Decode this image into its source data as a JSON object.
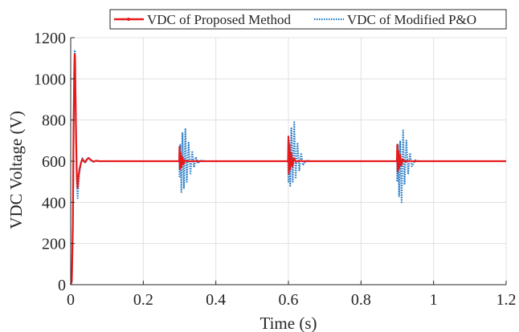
{
  "chart_data": {
    "type": "line",
    "title": "",
    "xlabel": "Time (s)",
    "ylabel": "VDC Voltage (V)",
    "xlim": [
      0,
      1.2
    ],
    "ylim": [
      0,
      1200
    ],
    "x_ticks": [
      0,
      0.2,
      0.4,
      0.6,
      0.8,
      1,
      1.2
    ],
    "x_tick_labels": [
      "0",
      "0.2",
      "0.4",
      "0.6",
      "0.8",
      "1",
      "1.2"
    ],
    "y_ticks": [
      0,
      200,
      400,
      600,
      800,
      1000,
      1200
    ],
    "y_tick_labels": [
      "0",
      "200",
      "400",
      "600",
      "800",
      "1000",
      "1200"
    ],
    "grid": true,
    "legend_position": "top-right",
    "series": [
      {
        "name": "VDC of Proposed Method",
        "color": "#e41a1c",
        "style": "solid-marker",
        "x": [
          0,
          0.003,
          0.006,
          0.008,
          0.01,
          0.011,
          0.012,
          0.013,
          0.015,
          0.017,
          0.019,
          0.021,
          0.024,
          0.028,
          0.032,
          0.036,
          0.04,
          0.045,
          0.05,
          0.056,
          0.063,
          0.07,
          0.08,
          0.1,
          0.15,
          0.2,
          0.25,
          0.299,
          0.3,
          0.301,
          0.303,
          0.305,
          0.308,
          0.311,
          0.315,
          0.32,
          0.33,
          0.34,
          0.36,
          0.4,
          0.5,
          0.599,
          0.6,
          0.601,
          0.603,
          0.605,
          0.608,
          0.611,
          0.615,
          0.62,
          0.63,
          0.64,
          0.66,
          0.7,
          0.8,
          0.899,
          0.9,
          0.901,
          0.903,
          0.905,
          0.908,
          0.911,
          0.915,
          0.92,
          0.93,
          0.94,
          0.96,
          1.0,
          1.1,
          1.2
        ],
        "y": [
          0,
          20,
          300,
          780,
          1060,
          1120,
          1100,
          950,
          700,
          520,
          470,
          520,
          560,
          590,
          610,
          600,
          595,
          610,
          615,
          605,
          598,
          602,
          600,
          600,
          600,
          600,
          600,
          600,
          670,
          560,
          640,
          570,
          620,
          585,
          605,
          600,
          600,
          600,
          600,
          600,
          600,
          600,
          720,
          540,
          680,
          560,
          640,
          575,
          615,
          598,
          602,
          600,
          600,
          600,
          600,
          600,
          680,
          550,
          650,
          565,
          630,
          580,
          610,
          598,
          601,
          600,
          600,
          600,
          600,
          600
        ]
      },
      {
        "name": "VDC of Modified P&O",
        "color": "#1f77c4",
        "style": "dotted",
        "x": [
          0,
          0.003,
          0.006,
          0.008,
          0.01,
          0.011,
          0.012,
          0.013,
          0.015,
          0.017,
          0.019,
          0.021,
          0.024,
          0.028,
          0.032,
          0.036,
          0.04,
          0.045,
          0.05,
          0.056,
          0.063,
          0.07,
          0.08,
          0.1,
          0.15,
          0.2,
          0.25,
          0.299,
          0.3,
          0.302,
          0.305,
          0.308,
          0.312,
          0.316,
          0.32,
          0.325,
          0.33,
          0.335,
          0.34,
          0.345,
          0.35,
          0.36,
          0.37,
          0.4,
          0.5,
          0.599,
          0.6,
          0.602,
          0.605,
          0.608,
          0.612,
          0.616,
          0.62,
          0.625,
          0.63,
          0.635,
          0.64,
          0.65,
          0.66,
          0.7,
          0.8,
          0.899,
          0.9,
          0.902,
          0.905,
          0.908,
          0.912,
          0.916,
          0.92,
          0.925,
          0.93,
          0.935,
          0.94,
          0.95,
          0.96,
          1.0,
          1.1,
          1.2
        ],
        "y": [
          0,
          10,
          250,
          750,
          1050,
          1140,
          1120,
          980,
          720,
          480,
          420,
          470,
          540,
          585,
          615,
          605,
          590,
          612,
          618,
          604,
          596,
          602,
          600,
          600,
          600,
          600,
          600,
          600,
          520,
          680,
          450,
          740,
          470,
          760,
          500,
          690,
          540,
          650,
          570,
          620,
          590,
          605,
          600,
          600,
          600,
          600,
          500,
          700,
          480,
          760,
          500,
          790,
          520,
          690,
          555,
          640,
          580,
          605,
          600,
          600,
          600,
          600,
          500,
          680,
          430,
          700,
          400,
          750,
          490,
          700,
          540,
          640,
          575,
          605,
          600,
          600,
          600,
          600
        ]
      }
    ]
  }
}
